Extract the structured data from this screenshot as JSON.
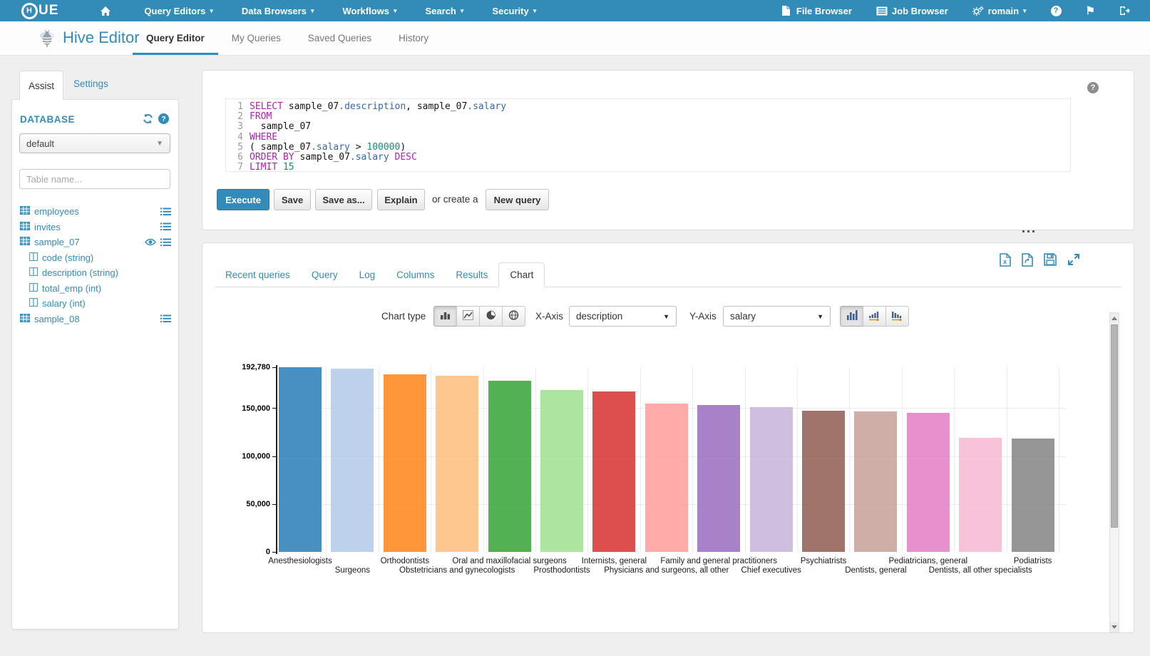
{
  "navbar": {
    "logo_text": "UE",
    "menus": [
      {
        "label": "Query Editors"
      },
      {
        "label": "Data Browsers"
      },
      {
        "label": "Workflows"
      },
      {
        "label": "Search"
      },
      {
        "label": "Security"
      }
    ],
    "file_browser": "File Browser",
    "job_browser": "Job Browser",
    "user": "romain",
    "icons": [
      "home-icon",
      "file-browser-icon",
      "job-browser-icon",
      "gears-icon",
      "help-circle-icon",
      "flag-icon",
      "sign-out-icon"
    ]
  },
  "header": {
    "app_title": "Hive Editor",
    "app_icon": "hive-bee-icon",
    "tabs": [
      {
        "label": "Query Editor",
        "active": true
      },
      {
        "label": "My Queries",
        "active": false
      },
      {
        "label": "Saved Queries",
        "active": false
      },
      {
        "label": "History",
        "active": false
      }
    ]
  },
  "assist": {
    "tab_assist": "Assist",
    "tab_settings": "Settings",
    "section_title": "DATABASE",
    "section_icons": [
      "refresh-icon",
      "help-icon"
    ],
    "database_select": "default",
    "table_filter_placeholder": "Table name...",
    "tables": [
      {
        "name": "employees",
        "right_icons": [
          "list-icon"
        ],
        "columns": []
      },
      {
        "name": "invites",
        "right_icons": [
          "list-icon"
        ],
        "columns": []
      },
      {
        "name": "sample_07",
        "right_icons": [
          "eye-icon",
          "list-icon"
        ],
        "columns": [
          "code (string)",
          "description (string)",
          "total_emp (int)",
          "salary (int)"
        ]
      },
      {
        "name": "sample_08",
        "right_icons": [
          "list-icon"
        ],
        "columns": []
      }
    ]
  },
  "editor": {
    "help_icon": "question-circle-icon",
    "lines": [
      {
        "num": "1",
        "tokens": [
          {
            "c": "kw",
            "t": "SELECT"
          },
          {
            "c": "pl",
            "t": " sample_07"
          },
          {
            "c": "id",
            "t": ".description"
          },
          {
            "c": "pl",
            "t": ", sample_07"
          },
          {
            "c": "id",
            "t": ".salary"
          }
        ]
      },
      {
        "num": "2",
        "tokens": [
          {
            "c": "kw",
            "t": "FROM"
          }
        ]
      },
      {
        "num": "3",
        "tokens": [
          {
            "c": "pl",
            "t": "  sample_07"
          }
        ]
      },
      {
        "num": "4",
        "tokens": [
          {
            "c": "kw",
            "t": "WHERE"
          }
        ]
      },
      {
        "num": "5",
        "tokens": [
          {
            "c": "pl",
            "t": "( sample_07"
          },
          {
            "c": "id",
            "t": ".salary"
          },
          {
            "c": "pl",
            "t": " > "
          },
          {
            "c": "num",
            "t": "100000"
          },
          {
            "c": "pl",
            "t": ")"
          }
        ]
      },
      {
        "num": "6",
        "tokens": [
          {
            "c": "kw",
            "t": "ORDER BY"
          },
          {
            "c": "pl",
            "t": " sample_07"
          },
          {
            "c": "id",
            "t": ".salary"
          },
          {
            "c": "kw",
            "t": " DESC"
          }
        ]
      },
      {
        "num": "7",
        "tokens": [
          {
            "c": "kw",
            "t": "LIMIT"
          },
          {
            "c": "num",
            "t": " 15"
          }
        ]
      }
    ],
    "execute": "Execute",
    "save": "Save",
    "save_as": "Save as...",
    "explain": "Explain",
    "or_create": "or create a",
    "new_query": "New query"
  },
  "results": {
    "tabs": [
      {
        "label": "Recent queries",
        "active": false
      },
      {
        "label": "Query",
        "active": false
      },
      {
        "label": "Log",
        "active": false
      },
      {
        "label": "Columns",
        "active": false
      },
      {
        "label": "Results",
        "active": false
      },
      {
        "label": "Chart",
        "active": true
      }
    ],
    "export_icons": [
      "excel-download-icon",
      "csv-download-icon",
      "save-results-icon",
      "expand-results-icon"
    ],
    "chart_type_label": "Chart type",
    "chart_type_buttons": [
      "bar-chart-icon",
      "line-chart-icon",
      "pie-chart-icon",
      "map-chart-icon"
    ],
    "chart_type_active": "bar-chart-icon",
    "x_axis_label": "X-Axis",
    "x_axis_value": "description",
    "y_axis_label": "Y-Axis",
    "y_axis_value": "salary",
    "sort_buttons": [
      "sort-none-icon",
      "sort-asc-icon",
      "sort-desc-icon"
    ],
    "sort_active": "sort-none-icon"
  },
  "chart_data": {
    "type": "bar",
    "title": "",
    "xlabel": "description",
    "ylabel": "salary",
    "categories": [
      "Anesthesiologists",
      "Surgeons",
      "Orthodontists",
      "Obstetricians and gynecologists",
      "Oral and maxillofacial surgeons",
      "Prosthodontists",
      "Internists, general",
      "Physicians and surgeons, all other",
      "Family and general practitioners",
      "Chief executives",
      "Psychiatrists",
      "Dentists, general",
      "Pediatricians, general",
      "Dentists, all other specialists",
      "Podiatrists"
    ],
    "values": [
      192780,
      191410,
      185340,
      183600,
      178440,
      169360,
      167270,
      155150,
      153640,
      151370,
      147620,
      146920,
      145210,
      119310,
      118500
    ],
    "ylim": [
      0,
      192780
    ],
    "y_ticks": [
      {
        "label": "192,780",
        "value": 192780,
        "bold": true
      },
      {
        "label": "150,000",
        "value": 150000,
        "bold": true
      },
      {
        "label": "100,000",
        "value": 100000,
        "bold": true
      },
      {
        "label": "50,000",
        "value": 50000,
        "bold": true
      },
      {
        "label": "0",
        "value": 0,
        "bold": true
      }
    ],
    "bar_colors": [
      "#1f77b4",
      "#aec7e8",
      "#ff7f0e",
      "#ffbb78",
      "#2ca02c",
      "#98df8a",
      "#d62728",
      "#ff9896",
      "#9467bd",
      "#c5b0d5",
      "#8c564b",
      "#c49c94",
      "#e377c2",
      "#f7b6d2",
      "#7f7f7f"
    ],
    "grid": true,
    "legend": "none"
  },
  "colors": {
    "accent": "#338bb8",
    "navbar_bg": "#338bb8",
    "page_bg": "#efefef",
    "keyword": "#b11fb1",
    "identifier": "#3566b0",
    "number_literal": "#0d9175"
  }
}
